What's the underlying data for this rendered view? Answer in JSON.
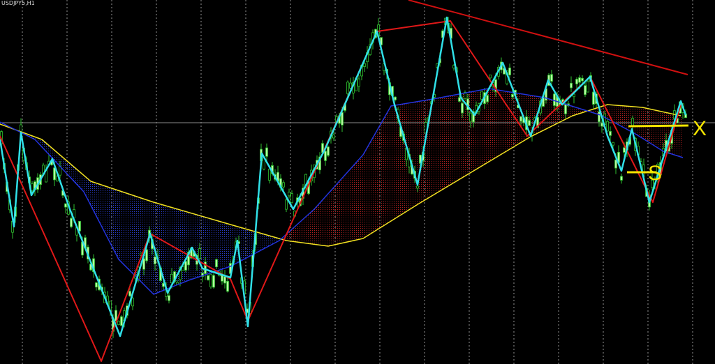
{
  "header": {
    "symbol": "USDJPY5,H1"
  },
  "annotations": {
    "x": "X",
    "s": "S"
  }
}
